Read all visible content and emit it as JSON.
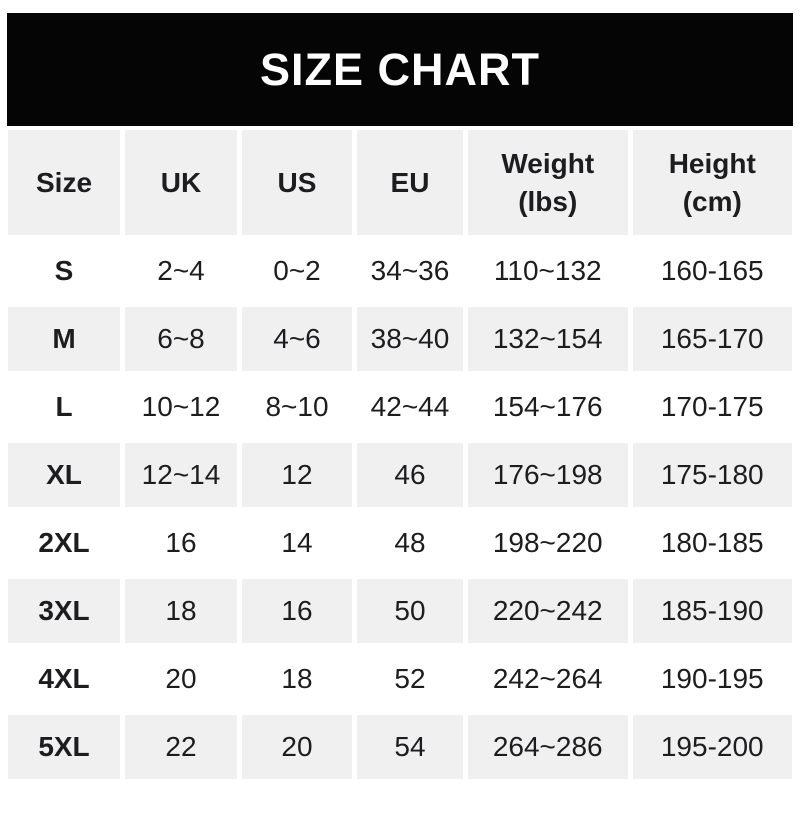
{
  "banner": {
    "title": "SIZE CHART"
  },
  "colors": {
    "banner_bg": "#050505",
    "banner_text": "#ffffff",
    "row_alt_bg": "#f0f0f1",
    "text": "#1d1d1f",
    "page_bg": "#ffffff"
  },
  "table": {
    "columns": [
      {
        "key": "size",
        "label": "Size"
      },
      {
        "key": "uk",
        "label": "UK"
      },
      {
        "key": "us",
        "label": "US"
      },
      {
        "key": "eu",
        "label": "EU"
      },
      {
        "key": "weight",
        "label": "Weight\n(lbs)"
      },
      {
        "key": "height",
        "label": "Height\n(cm)"
      }
    ],
    "rows": [
      {
        "size": "S",
        "uk": "2~4",
        "us": "0~2",
        "eu": "34~36",
        "weight": "110~132",
        "height": "160-165"
      },
      {
        "size": "M",
        "uk": "6~8",
        "us": "4~6",
        "eu": "38~40",
        "weight": "132~154",
        "height": "165-170"
      },
      {
        "size": "L",
        "uk": "10~12",
        "us": "8~10",
        "eu": "42~44",
        "weight": "154~176",
        "height": "170-175"
      },
      {
        "size": "XL",
        "uk": "12~14",
        "us": "12",
        "eu": "46",
        "weight": "176~198",
        "height": "175-180"
      },
      {
        "size": "2XL",
        "uk": "16",
        "us": "14",
        "eu": "48",
        "weight": "198~220",
        "height": "180-185"
      },
      {
        "size": "3XL",
        "uk": "18",
        "us": "16",
        "eu": "50",
        "weight": "220~242",
        "height": "185-190"
      },
      {
        "size": "4XL",
        "uk": "20",
        "us": "18",
        "eu": "52",
        "weight": "242~264",
        "height": "190-195"
      },
      {
        "size": "5XL",
        "uk": "22",
        "us": "20",
        "eu": "54",
        "weight": "264~286",
        "height": "195-200"
      }
    ]
  },
  "chart_data": {
    "type": "table",
    "title": "SIZE CHART",
    "columns": [
      "Size",
      "UK",
      "US",
      "EU",
      "Weight (lbs)",
      "Height (cm)"
    ],
    "rows": [
      [
        "S",
        "2~4",
        "0~2",
        "34~36",
        "110~132",
        "160-165"
      ],
      [
        "M",
        "6~8",
        "4~6",
        "38~40",
        "132~154",
        "165-170"
      ],
      [
        "L",
        "10~12",
        "8~10",
        "42~44",
        "154~176",
        "170-175"
      ],
      [
        "XL",
        "12~14",
        "12",
        "46",
        "176~198",
        "175-180"
      ],
      [
        "2XL",
        "16",
        "14",
        "48",
        "198~220",
        "180-185"
      ],
      [
        "3XL",
        "18",
        "16",
        "50",
        "220~242",
        "185-190"
      ],
      [
        "4XL",
        "20",
        "18",
        "52",
        "242~264",
        "190-195"
      ],
      [
        "5XL",
        "22",
        "20",
        "54",
        "264~286",
        "195-200"
      ]
    ],
    "layout_hints": {
      "header_background": "#f0f0f1",
      "alternating_row_background": [
        "#ffffff",
        "#f0f0f1"
      ],
      "title_banner_background": "#050505",
      "range_separator_weight": "~",
      "range_separator_height": "-"
    }
  }
}
